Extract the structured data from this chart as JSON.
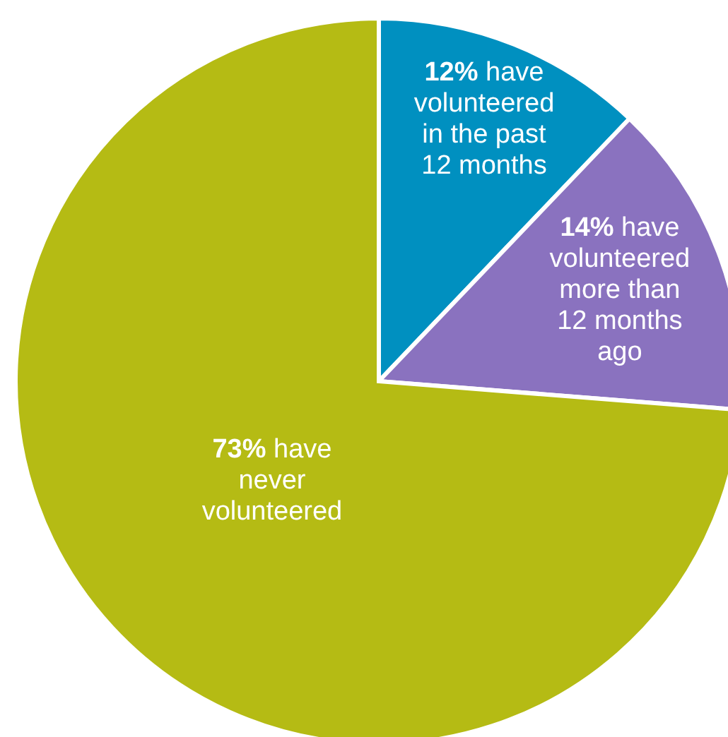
{
  "chart_data": {
    "type": "pie",
    "categories": [
      "have volunteered in the past 12 months",
      "have volunteered more than 12 months ago",
      "have never volunteered"
    ],
    "values": [
      12,
      14,
      73
    ],
    "value_labels": [
      "12%",
      "14%",
      "73%"
    ],
    "colors": [
      "#0090c0",
      "#8a72bf",
      "#b5bb14"
    ]
  }
}
